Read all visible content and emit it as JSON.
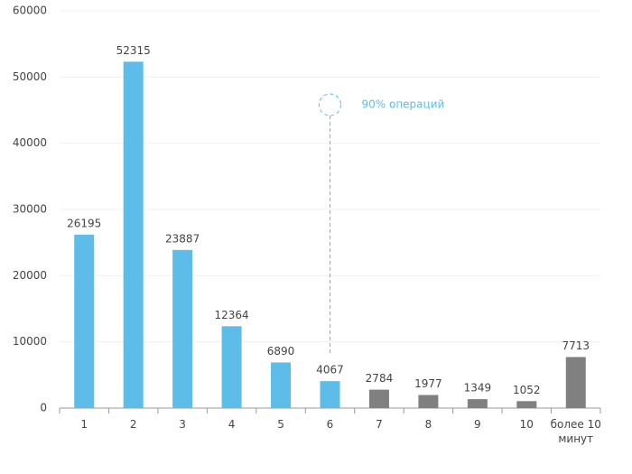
{
  "chart_data": {
    "type": "bar",
    "categories": [
      "1",
      "2",
      "3",
      "4",
      "5",
      "6",
      "7",
      "8",
      "9",
      "10",
      "более 10 минут"
    ],
    "values": [
      26195,
      52315,
      23887,
      12364,
      6890,
      4067,
      2784,
      1977,
      1349,
      1052,
      7713
    ],
    "colors": [
      "#5dbde8",
      "#5dbde8",
      "#5dbde8",
      "#5dbde8",
      "#5dbde8",
      "#5dbde8",
      "#808080",
      "#808080",
      "#808080",
      "#808080",
      "#808080"
    ],
    "ylim": [
      0,
      60000
    ],
    "yticks": [
      0,
      10000,
      20000,
      30000,
      40000,
      50000,
      60000
    ],
    "grid": true,
    "annotation": "90% операций",
    "annotation_color": "#5dbde8"
  }
}
